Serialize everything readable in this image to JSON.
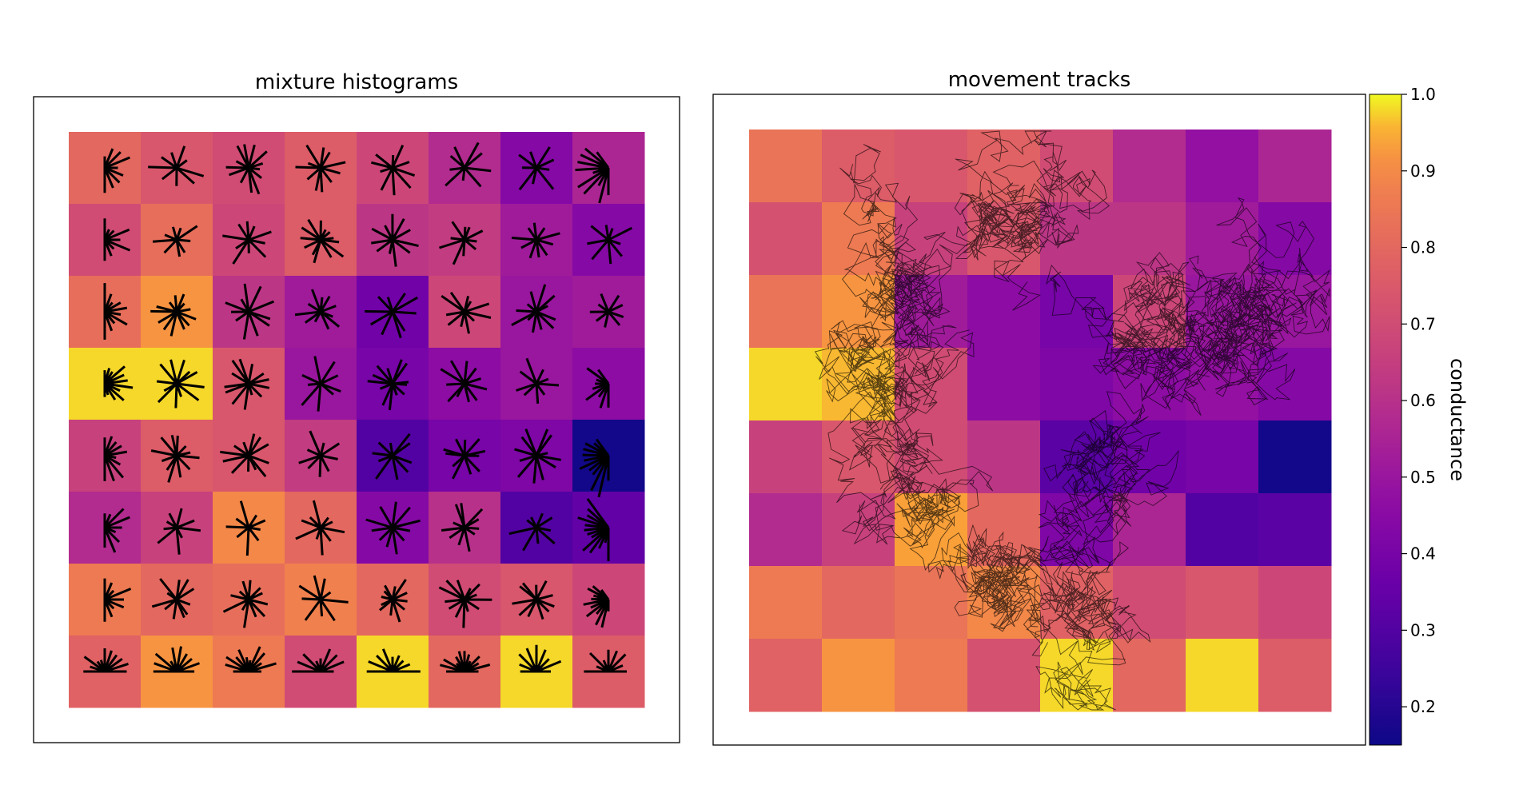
{
  "chart_data": [
    {
      "type": "heatmap",
      "title": "mixture histograms",
      "grid_size": [
        8,
        8
      ],
      "values": [
        [
          0.8,
          0.74,
          0.7,
          0.76,
          0.68,
          0.58,
          0.44,
          0.56
        ],
        [
          0.7,
          0.82,
          0.68,
          0.76,
          0.62,
          0.64,
          0.52,
          0.44
        ],
        [
          0.82,
          0.92,
          0.62,
          0.52,
          0.38,
          0.68,
          0.5,
          0.52
        ],
        [
          0.98,
          0.98,
          0.74,
          0.5,
          0.4,
          0.46,
          0.5,
          0.46
        ],
        [
          0.66,
          0.76,
          0.74,
          0.64,
          0.3,
          0.4,
          0.42,
          0.16
        ],
        [
          0.58,
          0.66,
          0.9,
          0.8,
          0.44,
          0.6,
          0.3,
          0.34
        ],
        [
          0.86,
          0.8,
          0.82,
          0.88,
          0.8,
          0.7,
          0.74,
          0.68
        ],
        [
          0.78,
          0.92,
          0.86,
          0.7,
          0.98,
          0.8,
          0.98,
          0.76
        ]
      ],
      "overlay": "directional histogram rosettes per cell",
      "grid": false
    },
    {
      "type": "heatmap",
      "title": "movement tracks",
      "grid_size": [
        8,
        8
      ],
      "values": [
        [
          0.84,
          0.76,
          0.74,
          0.78,
          0.7,
          0.58,
          0.48,
          0.56
        ],
        [
          0.72,
          0.86,
          0.66,
          0.74,
          0.62,
          0.62,
          0.52,
          0.44
        ],
        [
          0.84,
          0.92,
          0.52,
          0.46,
          0.4,
          0.68,
          0.5,
          0.5
        ],
        [
          0.98,
          0.96,
          0.7,
          0.46,
          0.42,
          0.46,
          0.48,
          0.44
        ],
        [
          0.66,
          0.74,
          0.7,
          0.62,
          0.32,
          0.38,
          0.4,
          0.16
        ],
        [
          0.58,
          0.66,
          0.94,
          0.8,
          0.42,
          0.56,
          0.3,
          0.32
        ],
        [
          0.86,
          0.8,
          0.84,
          0.9,
          0.78,
          0.7,
          0.74,
          0.68
        ],
        [
          0.78,
          0.92,
          0.86,
          0.72,
          0.98,
          0.8,
          0.98,
          0.76
        ]
      ],
      "overlay": "black random-walk movement tracks",
      "grid": false
    }
  ],
  "colorbar": {
    "label": "conductance",
    "colormap": "plasma",
    "range": [
      0.15,
      1.0
    ],
    "ticks": [
      "0.2",
      "0.3",
      "0.4",
      "0.5",
      "0.6",
      "0.7",
      "0.8",
      "0.9",
      "1.0"
    ],
    "tick_values": [
      0.2,
      0.3,
      0.4,
      0.5,
      0.6,
      0.7,
      0.8,
      0.9,
      1.0
    ]
  }
}
